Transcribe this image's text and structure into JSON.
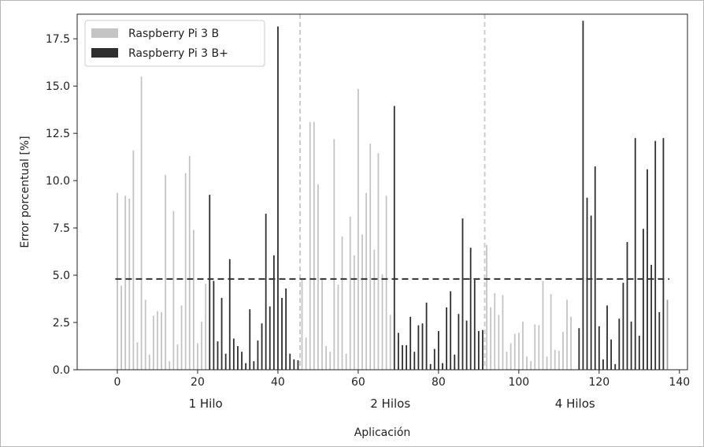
{
  "chart_data": {
    "type": "bar",
    "xlabel": "Aplicación",
    "ylabel": "Error porcentual [%]",
    "xlim": [
      -10,
      142
    ],
    "ylim": [
      0,
      18.8
    ],
    "xticks": [
      0,
      20,
      40,
      60,
      80,
      100,
      120,
      140
    ],
    "yticks": [
      0.0,
      2.5,
      5.0,
      7.5,
      10.0,
      12.5,
      15.0,
      17.5
    ],
    "xtick_labels": [
      "0",
      "20",
      "40",
      "60",
      "80",
      "100",
      "120",
      "140"
    ],
    "ytick_labels": [
      "0.0",
      "2.5",
      "5.0",
      "7.5",
      "10.0",
      "12.5",
      "15.0",
      "17.5"
    ],
    "grid": false,
    "legend_position": "top-left",
    "group_labels": [
      {
        "label": "1 Hilo",
        "x": 22
      },
      {
        "label": "2 Hilos",
        "x": 68
      },
      {
        "label": "4 Hilos",
        "x": 114
      }
    ],
    "separators_x": [
      45.5,
      91.5
    ],
    "mean_line_y": 4.8,
    "colors": {
      "series_b": "#c4c4c4",
      "series_bplus": "#2e2e2e",
      "separator": "#cccccc",
      "mean_line": "#333333"
    },
    "series": [
      {
        "name": "Raspberry Pi 3 B",
        "x": [
          0,
          1,
          2,
          3,
          4,
          5,
          6,
          7,
          8,
          9,
          10,
          11,
          12,
          13,
          14,
          15,
          16,
          17,
          18,
          19,
          20,
          21,
          22,
          46,
          47,
          48,
          49,
          50,
          51,
          52,
          53,
          54,
          55,
          56,
          57,
          58,
          59,
          60,
          61,
          62,
          63,
          64,
          65,
          66,
          67,
          68,
          92,
          93,
          94,
          95,
          96,
          97,
          98,
          99,
          100,
          101,
          102,
          103,
          104,
          105,
          106,
          107,
          108,
          109,
          110,
          111,
          112,
          113
        ],
        "values": [
          9.35,
          4.45,
          9.2,
          9.05,
          11.6,
          1.45,
          15.5,
          3.7,
          0.8,
          2.85,
          3.1,
          3.05,
          10.3,
          0.45,
          8.4,
          1.35,
          3.4,
          10.4,
          11.3,
          7.4,
          1.4,
          2.55,
          4.55,
          4.75,
          1.7,
          13.1,
          13.1,
          9.8,
          4.8,
          1.25,
          0.95,
          12.2,
          4.5,
          7.05,
          0.85,
          8.1,
          6.05,
          14.85,
          7.15,
          9.35,
          11.95,
          6.35,
          11.45,
          5.05,
          9.2,
          2.9,
          6.6,
          3.3,
          4.05,
          2.9,
          3.95,
          0.95,
          1.4,
          1.9,
          1.95,
          2.55,
          0.7,
          0.45,
          2.4,
          2.35,
          4.7,
          0.7,
          4.0,
          1.05,
          1.0,
          2.0,
          3.7,
          2.8
        ]
      },
      {
        "name": "Raspberry Pi 3 B+",
        "x": [
          23,
          24,
          25,
          26,
          27,
          28,
          29,
          30,
          31,
          32,
          33,
          34,
          35,
          36,
          37,
          38,
          39,
          40,
          41,
          42,
          43,
          44,
          45,
          69,
          70,
          71,
          72,
          73,
          74,
          75,
          76,
          77,
          78,
          79,
          80,
          81,
          82,
          83,
          84,
          85,
          86,
          87,
          88,
          89,
          90,
          91,
          115,
          116,
          117,
          118,
          119,
          120,
          121,
          122,
          123,
          124,
          125,
          126,
          127,
          128,
          129,
          130,
          131,
          132,
          133,
          134,
          135,
          136
        ],
        "values": [
          9.25,
          4.7,
          1.5,
          3.8,
          0.85,
          5.85,
          1.65,
          1.25,
          0.95,
          0.35,
          3.2,
          0.45,
          1.55,
          2.45,
          8.25,
          3.35,
          6.05,
          18.15,
          3.8,
          4.3,
          0.85,
          0.55,
          0.5,
          13.95,
          1.95,
          1.3,
          1.3,
          2.8,
          0.95,
          2.35,
          2.45,
          3.55,
          0.3,
          1.1,
          2.05,
          0.35,
          3.3,
          4.15,
          0.8,
          2.95,
          8.0,
          2.6,
          6.45,
          4.75,
          2.05,
          2.1,
          2.2,
          18.45,
          9.1,
          8.15,
          10.75,
          2.3,
          0.55,
          3.4,
          1.6,
          0.3,
          2.7,
          4.6,
          6.75,
          2.55,
          12.25,
          1.8,
          7.45,
          10.6,
          5.55,
          12.1,
          3.05,
          12.25
        ]
      }
    ],
    "extra_bar": {
      "x": 137,
      "value": 3.7,
      "color": "#a0a0a0"
    }
  }
}
